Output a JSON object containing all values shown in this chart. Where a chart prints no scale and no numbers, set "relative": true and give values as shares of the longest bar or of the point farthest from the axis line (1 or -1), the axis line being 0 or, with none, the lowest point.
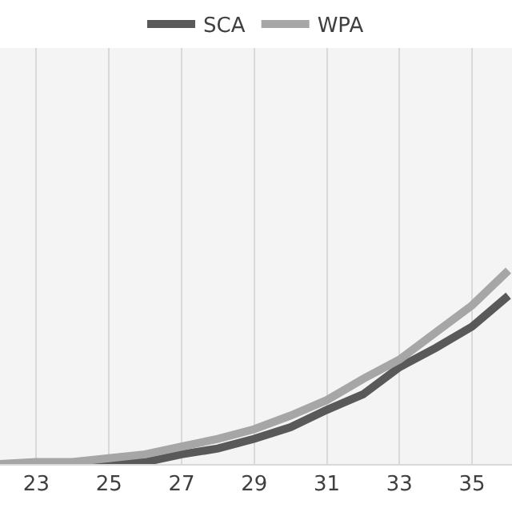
{
  "chart_data": {
    "type": "line",
    "relative": true,
    "x": [
      22,
      23,
      24,
      25,
      26,
      27,
      28,
      29,
      30,
      31,
      32,
      33,
      34,
      35,
      36
    ],
    "xlim": [
      22,
      36.1
    ],
    "xticks": [
      23,
      25,
      27,
      29,
      31,
      33,
      35
    ],
    "series": [
      {
        "name": "SCA",
        "color": "#595959",
        "values": [
          0,
          0,
          0,
          0,
          0.01,
          0.05,
          0.08,
          0.13,
          0.19,
          0.28,
          0.36,
          0.5,
          0.6,
          0.71,
          0.87
        ]
      },
      {
        "name": "WPA",
        "color": "#a6a6a6",
        "values": [
          0,
          0.01,
          0.01,
          0.03,
          0.05,
          0.09,
          0.13,
          0.18,
          0.25,
          0.33,
          0.44,
          0.54,
          0.68,
          0.82,
          1
        ]
      }
    ],
    "grid": "x",
    "legend": "top",
    "tick_labels": "x",
    "marker": "none",
    "line_style": "solid"
  }
}
